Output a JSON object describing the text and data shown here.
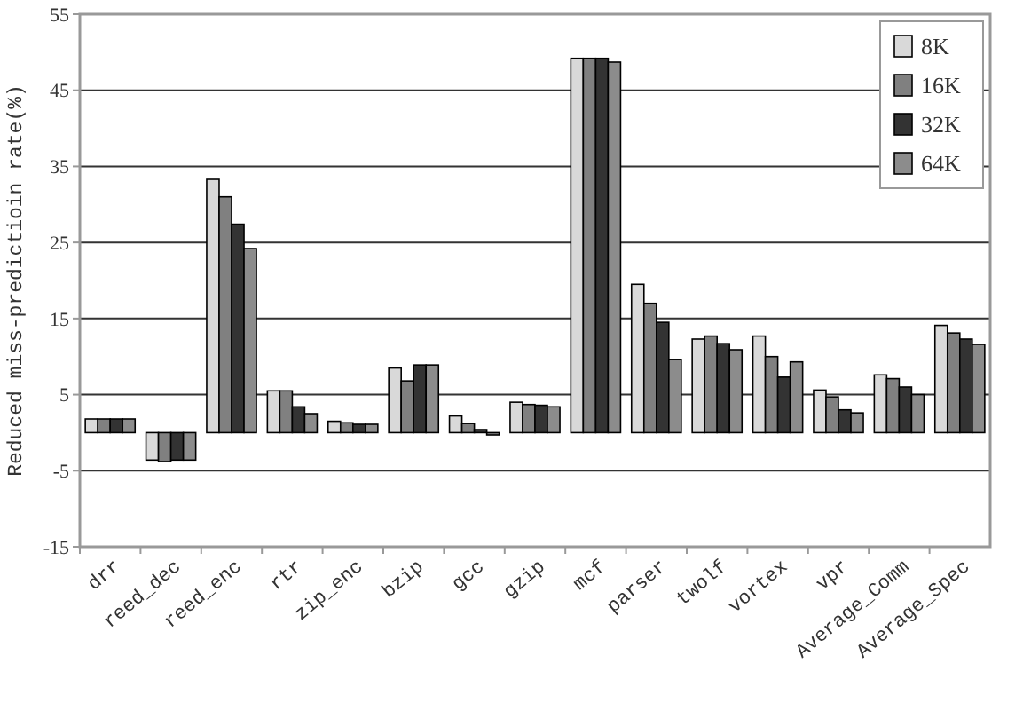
{
  "chart_data": {
    "type": "bar",
    "ylabel": "Reduced miss-predictioin rate(%)",
    "categories": [
      "drr",
      "reed_dec",
      "reed_enc",
      "rtr",
      "zip_enc",
      "bzip",
      "gcc",
      "gzip",
      "mcf",
      "parser",
      "twolf",
      "vortex",
      "vpr",
      "Average_Comm",
      "Average_Spec"
    ],
    "series": [
      {
        "name": "8K",
        "color": "#d9d9d9",
        "values": [
          1.8,
          -3.6,
          33.3,
          5.5,
          1.5,
          8.5,
          2.2,
          4,
          49.2,
          19.5,
          12.3,
          12.7,
          5.6,
          7.6,
          14.1
        ]
      },
      {
        "name": "16K",
        "color": "#808080",
        "values": [
          1.8,
          -3.8,
          31,
          5.5,
          1.3,
          6.8,
          1.2,
          3.7,
          49.2,
          17,
          12.7,
          10,
          4.7,
          7.1,
          13.1
        ]
      },
      {
        "name": "32K",
        "color": "#333333",
        "values": [
          1.8,
          -3.6,
          27.4,
          3.4,
          1.1,
          8.9,
          0.4,
          3.6,
          49.2,
          14.5,
          11.7,
          7.3,
          3,
          6,
          12.3
        ]
      },
      {
        "name": "64K",
        "color": "#8c8c8c",
        "values": [
          1.8,
          -3.6,
          24.2,
          2.5,
          1.1,
          8.9,
          -0.3,
          3.4,
          48.7,
          9.6,
          10.9,
          9.3,
          2.6,
          5,
          11.6
        ]
      }
    ],
    "ylim": [
      -15,
      55
    ],
    "yticks": [
      -15,
      -5,
      5,
      15,
      25,
      35,
      45,
      55
    ],
    "grid": "y",
    "legend": "top right"
  }
}
